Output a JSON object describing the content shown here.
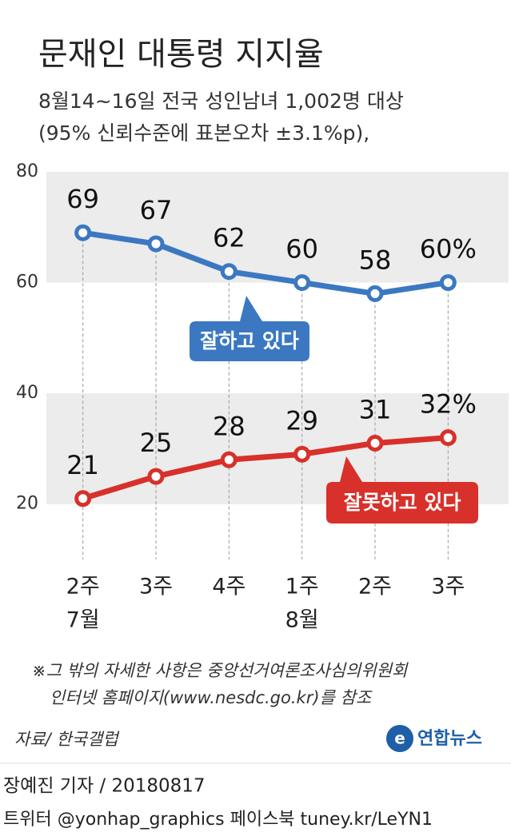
{
  "header": {
    "title": "문재인 대통령 지지율",
    "subtitle_lines": [
      "8월14~16일 전국 성인남녀 1,002명 대상",
      "(95% 신뢰수준에 표본오차 ±3.1%p),"
    ]
  },
  "chart_data": {
    "type": "line",
    "categories": [
      "2주",
      "3주",
      "4주",
      "1주",
      "2주",
      "3주"
    ],
    "category_groups": [
      "7월",
      null,
      null,
      "8월",
      null,
      null
    ],
    "series": [
      {
        "name": "잘하고 있다",
        "color": "#3b78c1",
        "values": [
          69,
          67,
          62,
          60,
          58,
          60
        ],
        "value_labels": [
          "69",
          "67",
          "62",
          "60",
          "58",
          "60%"
        ]
      },
      {
        "name": "잘못하고 있다",
        "color": "#d8302a",
        "values": [
          21,
          25,
          28,
          29,
          31,
          32
        ],
        "value_labels": [
          "21",
          "25",
          "28",
          "29",
          "31",
          "32%"
        ]
      }
    ],
    "ylim": [
      10,
      80
    ],
    "yticks": [
      20,
      40,
      60,
      80
    ],
    "grid_bands": true
  },
  "notes": [
    "※그 밖의 자세한 사항은 중앙선거여론조사심의위원회",
    "인터넷 홈페이지(www.nesdc.go.kr)를 참조"
  ],
  "source": "자료/ 한국갤럽",
  "logo": "연합뉴스",
  "byline": "장예진 기자 / 20180817",
  "footer": "트위터 @yonhap_graphics  페이스북 tuney.kr/LeYN1"
}
